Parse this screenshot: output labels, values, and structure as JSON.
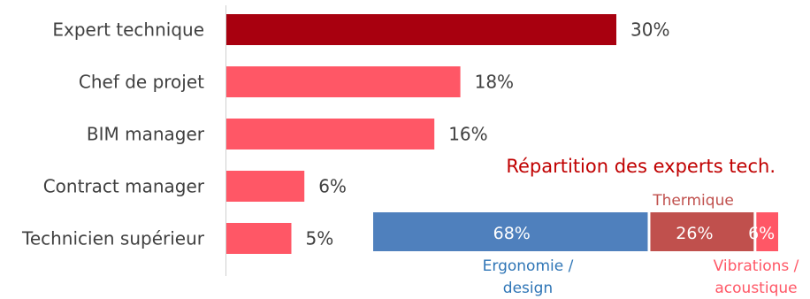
{
  "colors": {
    "highlight": "#a8000f",
    "bar": "#ff5766",
    "ergonomie": "#4f80bd",
    "thermique": "#c0504d",
    "vibrations": "#ff5766",
    "title": "#c00000",
    "ergonomie_label": "#2e75b6",
    "text": "#404040",
    "axis": "#d0d0d0"
  },
  "chart_data": [
    {
      "type": "bar",
      "orientation": "horizontal",
      "categories": [
        "Expert technique",
        "Chef de projet",
        "BIM manager",
        "Contract manager",
        "Technicien supérieur"
      ],
      "values": [
        30,
        18,
        16,
        6,
        5
      ],
      "value_labels": [
        "30%",
        "18%",
        "16%",
        "6%",
        "5%"
      ],
      "xlim": [
        0,
        32
      ],
      "highlight_index": 0
    },
    {
      "type": "bar",
      "orientation": "horizontal",
      "stacked": true,
      "title": "Répartition des experts tech.",
      "segments": [
        {
          "name_lines": [
            "Ergonomie /",
            "design"
          ],
          "value": 68,
          "label": "68%"
        },
        {
          "name_lines": [
            "Thermique"
          ],
          "value": 26,
          "label": "26%"
        },
        {
          "name_lines": [
            "Vibrations /",
            "acoustique"
          ],
          "value": 6,
          "label": "6%"
        }
      ]
    }
  ]
}
